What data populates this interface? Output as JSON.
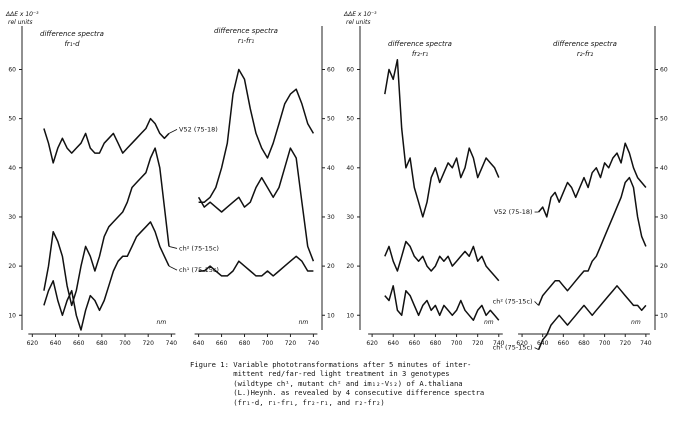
{
  "chart_data": [
    {
      "type": "line",
      "ylabel": "ΔΔE x 10⁻³",
      "ylabel2": "rel units",
      "yticks": [
        10,
        20,
        30,
        40,
        50,
        60
      ],
      "yticks_right": [
        10,
        20,
        30,
        40,
        50,
        60
      ],
      "ylim": [
        7,
        66
      ],
      "xunit": "nm",
      "panels": [
        {
          "title": "difference spectra",
          "title2": "fr₁-d",
          "xlim": [
            618,
            744
          ],
          "xticks": [
            620,
            640,
            660,
            680,
            700,
            720,
            740
          ],
          "series": [
            {
              "name": "V52 (75-18)",
              "x": [
                630,
                634,
                638,
                642,
                646,
                650,
                654,
                658,
                662,
                666,
                670,
                674,
                678,
                682,
                686,
                690,
                694,
                698,
                702,
                706,
                710,
                714,
                718,
                722,
                726,
                730,
                734,
                738
              ],
              "y": [
                48,
                45,
                41,
                44,
                46,
                44,
                43,
                44,
                45,
                47,
                44,
                43,
                43,
                45,
                46,
                47,
                45,
                43,
                44,
                45,
                46,
                47,
                48,
                50,
                49,
                47,
                46,
                47
              ]
            },
            {
              "name": "ch² (75-15c)",
              "x": [
                630,
                634,
                638,
                642,
                646,
                650,
                654,
                658,
                662,
                666,
                670,
                674,
                678,
                682,
                686,
                690,
                694,
                698,
                702,
                706,
                710,
                714,
                718,
                722,
                726,
                730,
                734,
                738
              ],
              "y": [
                15,
                20,
                27,
                25,
                22,
                16,
                12,
                15,
                20,
                24,
                22,
                19,
                22,
                26,
                28,
                29,
                30,
                31,
                33,
                36,
                37,
                38,
                39,
                42,
                44,
                40,
                32,
                24
              ]
            },
            {
              "name": "ch¹ (75-15c)",
              "x": [
                630,
                634,
                638,
                642,
                646,
                650,
                654,
                658,
                662,
                666,
                670,
                674,
                678,
                682,
                686,
                690,
                694,
                698,
                702,
                706,
                710,
                714,
                718,
                722,
                726,
                730,
                734,
                738
              ],
              "y": [
                12,
                15,
                17,
                13,
                10,
                13,
                15,
                10,
                7,
                11,
                14,
                13,
                11,
                13,
                16,
                19,
                21,
                22,
                22,
                24,
                26,
                27,
                28,
                29,
                27,
                24,
                22,
                20
              ]
            }
          ]
        },
        {
          "title": "difference spectra",
          "title2": "r₁-fr₁",
          "xlim": [
            636,
            744
          ],
          "xticks": [
            640,
            660,
            680,
            700,
            720,
            740
          ],
          "series": [
            {
              "name": "V52 (75-18)",
              "x": [
                640,
                645,
                650,
                655,
                660,
                665,
                670,
                675,
                680,
                685,
                690,
                695,
                700,
                705,
                710,
                715,
                720,
                725,
                730,
                735,
                740
              ],
              "y": [
                33,
                33,
                34,
                36,
                40,
                45,
                55,
                60,
                58,
                52,
                47,
                44,
                42,
                45,
                49,
                53,
                55,
                56,
                53,
                49,
                47
              ]
            },
            {
              "name": "ch² (75-15c)",
              "x": [
                640,
                645,
                650,
                655,
                660,
                665,
                670,
                675,
                680,
                685,
                690,
                695,
                700,
                705,
                710,
                715,
                720,
                725,
                730,
                735,
                740
              ],
              "y": [
                34,
                32,
                33,
                32,
                31,
                32,
                33,
                34,
                32,
                33,
                36,
                38,
                36,
                34,
                36,
                40,
                44,
                42,
                33,
                24,
                21
              ]
            },
            {
              "name": "ch¹ (75-15c)",
              "x": [
                640,
                645,
                650,
                655,
                660,
                665,
                670,
                675,
                680,
                685,
                690,
                695,
                700,
                705,
                710,
                715,
                720,
                725,
                730,
                735,
                740
              ],
              "y": [
                19,
                19,
                20,
                19,
                18,
                18,
                19,
                21,
                20,
                19,
                18,
                18,
                19,
                18,
                19,
                20,
                21,
                22,
                21,
                19,
                19
              ]
            }
          ]
        },
        {
          "title": "difference spectra",
          "title2": "fr₂-r₁",
          "xlim": [
            618,
            744
          ],
          "xticks": [
            620,
            640,
            660,
            680,
            700,
            720,
            740
          ],
          "series": [
            {
              "name": "V52 (75-18)",
              "x": [
                632,
                636,
                640,
                644,
                648,
                652,
                656,
                660,
                664,
                668,
                672,
                676,
                680,
                684,
                688,
                692,
                696,
                700,
                704,
                708,
                712,
                716,
                720,
                724,
                728,
                732,
                736,
                740
              ],
              "y": [
                55,
                60,
                58,
                62,
                48,
                40,
                42,
                36,
                33,
                30,
                33,
                38,
                40,
                37,
                39,
                41,
                40,
                42,
                38,
                40,
                44,
                42,
                38,
                40,
                42,
                41,
                40,
                38
              ]
            },
            {
              "name": "ch² (75-15c)",
              "x": [
                632,
                636,
                640,
                644,
                648,
                652,
                656,
                660,
                664,
                668,
                672,
                676,
                680,
                684,
                688,
                692,
                696,
                700,
                704,
                708,
                712,
                716,
                720,
                724,
                728,
                732,
                736,
                740
              ],
              "y": [
                22,
                24,
                21,
                19,
                22,
                25,
                24,
                22,
                21,
                22,
                20,
                19,
                20,
                22,
                21,
                22,
                20,
                21,
                22,
                23,
                22,
                24,
                21,
                22,
                20,
                19,
                18,
                17
              ]
            },
            {
              "name": "ch¹ (75-15c)",
              "x": [
                632,
                636,
                640,
                644,
                648,
                652,
                656,
                660,
                664,
                668,
                672,
                676,
                680,
                684,
                688,
                692,
                696,
                700,
                704,
                708,
                712,
                716,
                720,
                724,
                728,
                732,
                736,
                740
              ],
              "y": [
                14,
                13,
                16,
                11,
                10,
                15,
                14,
                12,
                10,
                12,
                13,
                11,
                12,
                10,
                12,
                11,
                10,
                11,
                13,
                11,
                10,
                9,
                11,
                12,
                10,
                11,
                10,
                9
              ]
            }
          ]
        },
        {
          "title": "difference spectra",
          "title2": "r₂-fr₂",
          "xlim": [
            618,
            744
          ],
          "xticks": [
            620,
            640,
            660,
            680,
            700,
            720,
            740
          ],
          "series": [
            {
              "name": "V52 (75-18)",
              "x": [
                636,
                640,
                644,
                648,
                652,
                656,
                660,
                664,
                668,
                672,
                676,
                680,
                684,
                688,
                692,
                696,
                700,
                704,
                708,
                712,
                716,
                720,
                724,
                728,
                732,
                736,
                740
              ],
              "y": [
                31,
                32,
                30,
                34,
                35,
                33,
                35,
                37,
                36,
                34,
                36,
                38,
                36,
                39,
                40,
                38,
                41,
                40,
                42,
                43,
                41,
                45,
                43,
                40,
                38,
                37,
                36
              ]
            },
            {
              "name": "ch² (75-15c)",
              "x": [
                636,
                640,
                644,
                648,
                652,
                656,
                660,
                664,
                668,
                672,
                676,
                680,
                684,
                688,
                692,
                696,
                700,
                704,
                708,
                712,
                716,
                720,
                724,
                728,
                732,
                736,
                740
              ],
              "y": [
                12,
                14,
                15,
                16,
                17,
                17,
                16,
                15,
                16,
                17,
                18,
                19,
                19,
                21,
                22,
                24,
                26,
                28,
                30,
                32,
                34,
                37,
                38,
                36,
                30,
                26,
                24
              ]
            },
            {
              "name": "ch¹ (75-15c)",
              "x": [
                636,
                640,
                644,
                648,
                652,
                656,
                660,
                664,
                668,
                672,
                676,
                680,
                684,
                688,
                692,
                696,
                700,
                704,
                708,
                712,
                716,
                720,
                724,
                728,
                732,
                736,
                740
              ],
              "y": [
                3,
                5,
                6,
                8,
                9,
                10,
                9,
                8,
                9,
                10,
                11,
                12,
                11,
                10,
                11,
                12,
                13,
                14,
                15,
                16,
                15,
                14,
                13,
                12,
                12,
                11,
                12
              ]
            }
          ]
        }
      ]
    }
  ],
  "caption": {
    "lines": [
      "Figure 1: Variable phototransformations after 5 minutes of inter-",
      "          mittent red/far-red light treatment in 3 genotypes",
      "          (wildtype ch¹, mutant ch² and im₁₂-V₅₂) of A.thaliana",
      "          (L.)Heynh. as revealed by 4 consecutive difference spectra",
      "          (fr₁-d, r₁-fr₁, fr₂-r₁, and r₂-fr₂)"
    ]
  }
}
